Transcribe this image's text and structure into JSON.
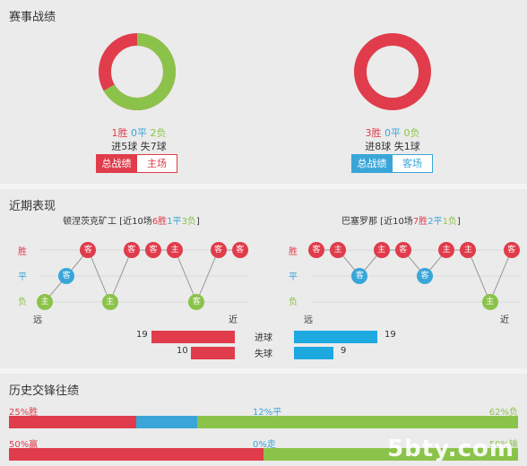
{
  "section1": {
    "title": "赛事战绩",
    "left": {
      "record": {
        "w": "1胜",
        "d": "0平",
        "l": "2负"
      },
      "goals": "进5球  失7球",
      "tab_active": "总战绩",
      "tab_other": "主场",
      "donut": {
        "win": 1,
        "draw": 0,
        "loss": 2
      }
    },
    "right": {
      "record": {
        "w": "3胜",
        "d": "0平",
        "l": "0负"
      },
      "goals": "进8球  失1球",
      "tab_active": "总战绩",
      "tab_other": "客场",
      "donut": {
        "win": 3,
        "draw": 0,
        "loss": 0
      }
    }
  },
  "section2": {
    "title": "近期表现",
    "left_team": {
      "name": "顿涅茨克矿工",
      "pre": " [近10场",
      "w": "6胜",
      "d": "1平",
      "l": "3负",
      "post": "]"
    },
    "right_team": {
      "name": "巴塞罗那",
      "pre": " [近10场",
      "w": "7胜",
      "d": "2平",
      "l": "1负",
      "post": "]"
    },
    "axis": {
      "win": "胜",
      "draw": "平",
      "loss": "负",
      "far": "远",
      "near": "近"
    },
    "left_results": [
      {
        "r": "loss",
        "v": "主"
      },
      {
        "r": "draw",
        "v": "客"
      },
      {
        "r": "win",
        "v": "客"
      },
      {
        "r": "loss",
        "v": "主"
      },
      {
        "r": "win",
        "v": "客"
      },
      {
        "r": "win",
        "v": "客"
      },
      {
        "r": "win",
        "v": "主"
      },
      {
        "r": "loss",
        "v": "客"
      },
      {
        "r": "win",
        "v": "客"
      },
      {
        "r": "win",
        "v": "客"
      }
    ],
    "right_results": [
      {
        "r": "win",
        "v": "客"
      },
      {
        "r": "win",
        "v": "主"
      },
      {
        "r": "draw",
        "v": "客"
      },
      {
        "r": "win",
        "v": "主"
      },
      {
        "r": "win",
        "v": "客"
      },
      {
        "r": "draw",
        "v": "客"
      },
      {
        "r": "win",
        "v": "主"
      },
      {
        "r": "win",
        "v": "主"
      },
      {
        "r": "loss",
        "v": "主"
      },
      {
        "r": "win",
        "v": "客"
      }
    ],
    "goals": {
      "scored_label": "进球",
      "conceded_label": "失球",
      "left_scored": 19,
      "left_conceded": 10,
      "right_scored": 19,
      "right_conceded": 9
    }
  },
  "section3": {
    "title": "历史交锋往绩",
    "row1": {
      "left": "25%胜",
      "mid": "12%平",
      "right": "62%负",
      "win": 25,
      "draw": 12,
      "loss": 62
    },
    "row2": {
      "left": "50%赢",
      "mid": "0%走",
      "right": "50%输",
      "win": 50,
      "draw": 0,
      "loss": 50
    }
  },
  "colors": {
    "win": "#e03c4b",
    "draw": "#3aa6d8",
    "loss": "#8bc34a"
  },
  "watermark": "5bty.com"
}
